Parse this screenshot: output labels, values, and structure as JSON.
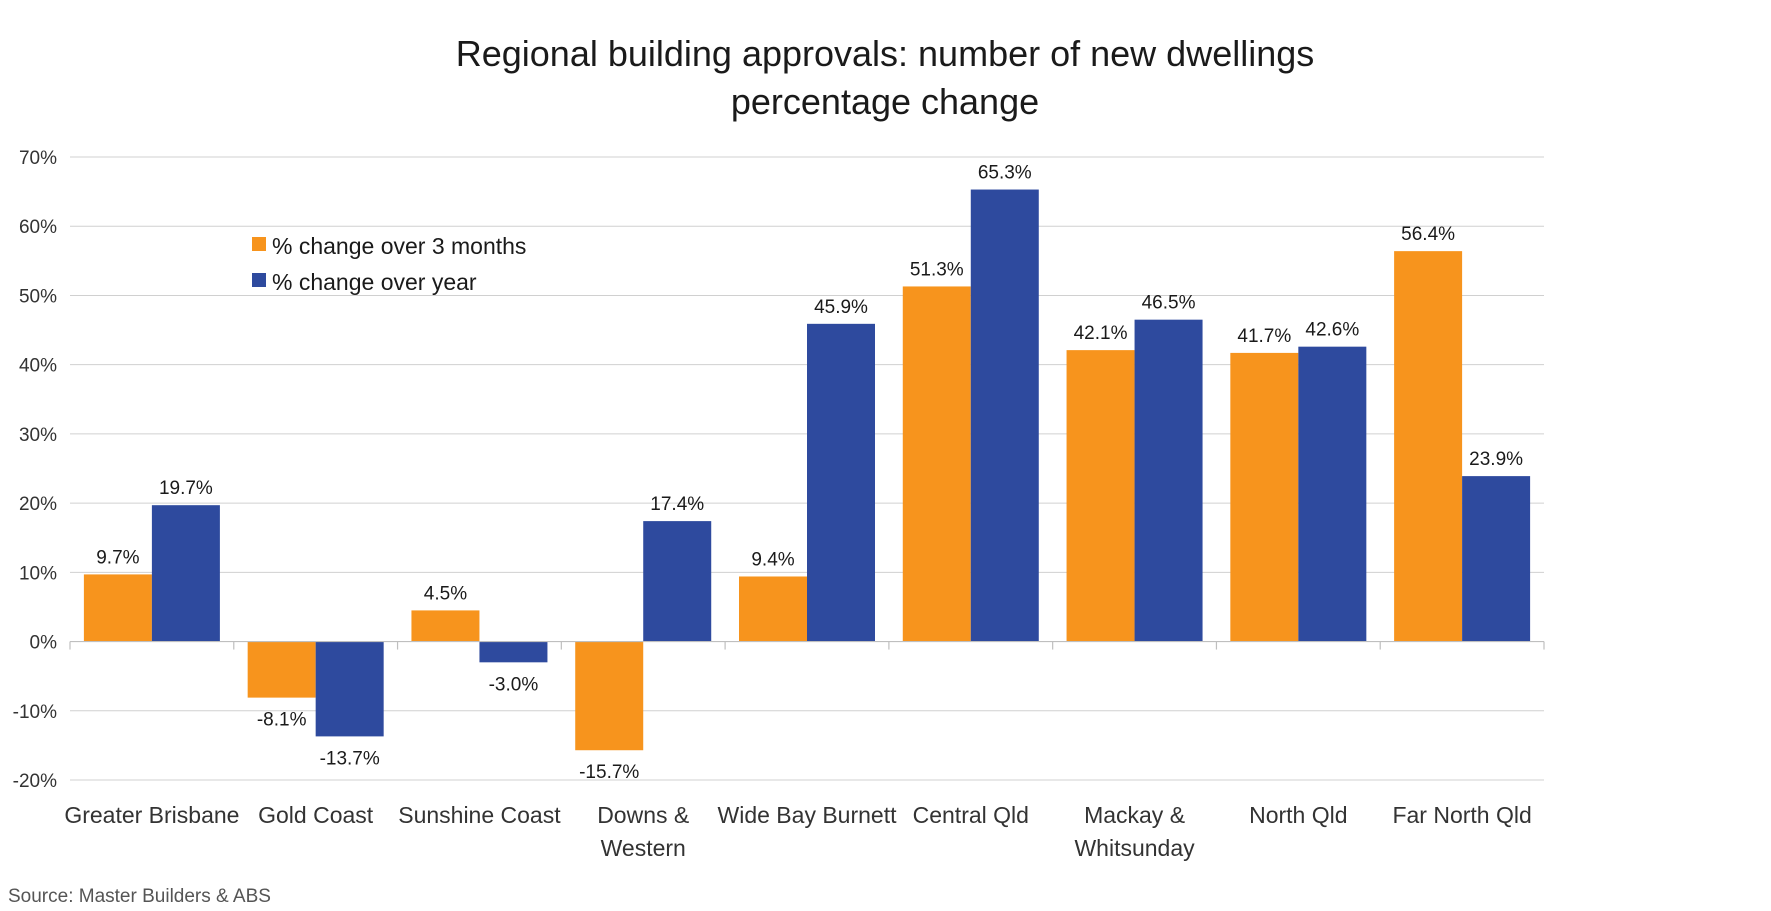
{
  "chart_data": {
    "type": "bar",
    "title": "Regional building approvals: number of new dwellings percentage change",
    "title_lines": [
      "Regional building approvals: number of new dwellings",
      "percentage change"
    ],
    "categories": [
      [
        "Greater Brisbane"
      ],
      [
        "Gold Coast"
      ],
      [
        "Sunshine Coast"
      ],
      [
        "Downs &",
        "Western"
      ],
      [
        "Wide Bay Burnett"
      ],
      [
        "Central Qld"
      ],
      [
        "Mackay &",
        "Whitsunday"
      ],
      [
        "North Qld"
      ],
      [
        "Far North Qld"
      ]
    ],
    "series": [
      {
        "name": "% change over 3 months",
        "color": "#F7941D",
        "values": [
          9.7,
          -8.1,
          4.5,
          -15.7,
          9.4,
          51.3,
          42.1,
          41.7,
          56.4
        ],
        "labels": [
          "9.7%",
          "-8.1%",
          "4.5%",
          "-15.7%",
          "9.4%",
          "51.3%",
          "42.1%",
          "41.7%",
          "56.4%"
        ]
      },
      {
        "name": "% change over year",
        "color": "#2E4A9E",
        "values": [
          19.7,
          -13.7,
          -3.0,
          17.4,
          45.9,
          65.3,
          46.5,
          42.6,
          23.9
        ],
        "labels": [
          "19.7%",
          "-13.7%",
          "-3.0%",
          "17.4%",
          "45.9%",
          "65.3%",
          "46.5%",
          "42.6%",
          "23.9%"
        ]
      }
    ],
    "y_ticks": [
      70,
      60,
      50,
      40,
      30,
      20,
      10,
      0,
      -10,
      -20
    ],
    "y_tick_labels": [
      "70%",
      "60%",
      "50%",
      "40%",
      "30%",
      "20%",
      "10%",
      "0%",
      "-10%",
      "-20%"
    ],
    "ylim": [
      -20,
      70
    ],
    "xlabel": "",
    "ylabel": "",
    "grid": true,
    "legend_position": "top-left",
    "source": "Source: Master Builders & ABS"
  }
}
